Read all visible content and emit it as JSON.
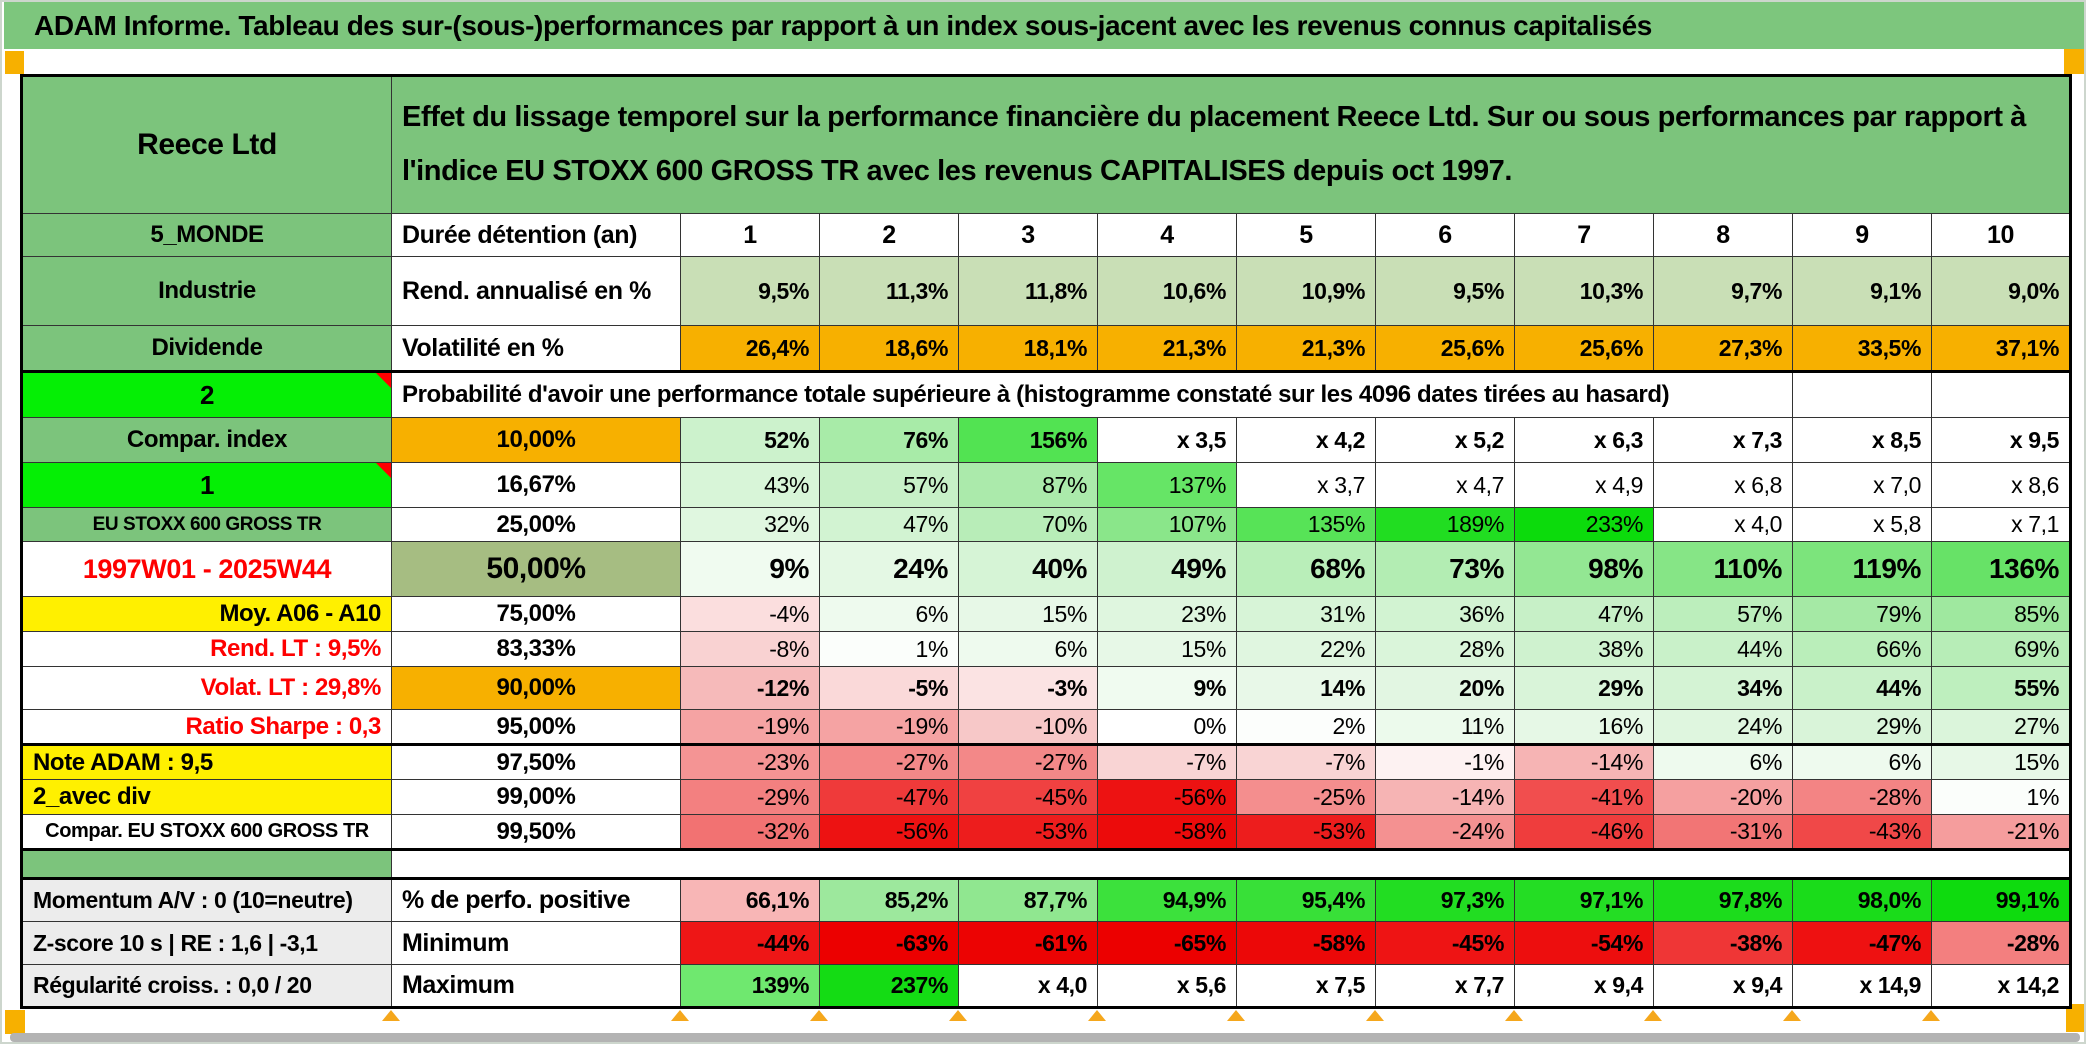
{
  "title": "ADAM Informe. Tableau des sur-(sous-)performances par rapport à un index sous-jacent avec les revenus connus capitalisés",
  "colors": {
    "title_bg": "#7dc67d",
    "green_cell": "#7cc47c",
    "bright_green": "#05ef05",
    "orange": "#f7b000",
    "olive": "#a6bd82",
    "yellow": "#fff000",
    "gray_label": "#ececec",
    "light_green_row": "#c9dfb6",
    "red_text": "#fe0000",
    "marker_orange": "#f5a71c",
    "scrollbar_gray": "#b3b3b3"
  },
  "table": {
    "rows": [
      {
        "id": "top",
        "left": {
          "t": "Reece Ltd",
          "bg": "#7cc47c",
          "fs": 30,
          "al": "c",
          "b": true
        },
        "metric": {
          "t": "Effet du lissage temporel sur la performance financière du placement Reece Ltd. Sur ou sous performances par rapport à l'indice EU STOXX 600 GROSS TR avec les revenus CAPITALISES depuis oct 1997.",
          "bg": "#7cc47c",
          "fs": 29,
          "al": "l",
          "b": true,
          "wrap": true
        },
        "span": 11,
        "trailing": 0
      },
      {
        "id": "duree",
        "left": {
          "t": "5_MONDE",
          "bg": "#7cc47c",
          "fs": 24,
          "al": "c",
          "b": true
        },
        "metric": {
          "t": "Durée détention (an)",
          "al": "l",
          "fs": 25,
          "b": true
        },
        "valsAl": "c",
        "valsBold": true,
        "valsFs": 25,
        "cells": [
          {
            "t": "1"
          },
          {
            "t": "2"
          },
          {
            "t": "3"
          },
          {
            "t": "4"
          },
          {
            "t": "5"
          },
          {
            "t": "6"
          },
          {
            "t": "7"
          },
          {
            "t": "8"
          },
          {
            "t": "9"
          },
          {
            "t": "10"
          }
        ]
      },
      {
        "id": "rend",
        "left": {
          "t": "Industrie",
          "bg": "#7cc47c",
          "fs": 24,
          "al": "c",
          "b": true
        },
        "metric": {
          "t": "Rend. annualisé en %",
          "al": "l",
          "fs": 25,
          "b": true
        },
        "valsBold": true,
        "cells": [
          {
            "t": "9,5%",
            "bg": "#c9dfb6"
          },
          {
            "t": "11,3%",
            "bg": "#c9dfb6"
          },
          {
            "t": "11,8%",
            "bg": "#c9dfb6"
          },
          {
            "t": "10,6%",
            "bg": "#c9dfb6"
          },
          {
            "t": "10,9%",
            "bg": "#c9dfb6"
          },
          {
            "t": "9,5%",
            "bg": "#c9dfb6"
          },
          {
            "t": "10,3%",
            "bg": "#c9dfb6"
          },
          {
            "t": "9,7%",
            "bg": "#c9dfb6"
          },
          {
            "t": "9,1%",
            "bg": "#c9dfb6"
          },
          {
            "t": "9,0%",
            "bg": "#c9dfb6"
          }
        ]
      },
      {
        "id": "vol",
        "cls": "thickb",
        "left": {
          "t": "Dividende",
          "bg": "#7cc47c",
          "fs": 24,
          "al": "c",
          "b": true
        },
        "metric": {
          "t": "Volatilité en %",
          "al": "l",
          "fs": 25,
          "b": true
        },
        "valsBold": true,
        "cells": [
          {
            "t": "26,4%",
            "bg": "#f7b000"
          },
          {
            "t": "18,6%",
            "bg": "#f7b000"
          },
          {
            "t": "18,1%",
            "bg": "#f7b000"
          },
          {
            "t": "21,3%",
            "bg": "#f7b000"
          },
          {
            "t": "21,3%",
            "bg": "#f7b000"
          },
          {
            "t": "25,6%",
            "bg": "#f7b000"
          },
          {
            "t": "25,6%",
            "bg": "#f7b000"
          },
          {
            "t": "27,3%",
            "bg": "#f7b000"
          },
          {
            "t": "33,5%",
            "bg": "#f7b000"
          },
          {
            "t": "37,1%",
            "bg": "#f7b000"
          }
        ]
      },
      {
        "id": "proba",
        "left": {
          "t": "2",
          "bg": "#05ef05",
          "fs": 26,
          "al": "c",
          "b": true,
          "corner": true
        },
        "metric": {
          "t": "Probabilité d'avoir une performance totale supérieure à (histogramme constaté sur les 4096 dates tirées au hasard)",
          "al": "l",
          "fs": 24,
          "b": true
        },
        "span": 9,
        "trailing": 2
      },
      {
        "id": "p10",
        "left": {
          "t": "Compar. index",
          "bg": "#7cc47c",
          "fs": 24,
          "al": "c",
          "b": true
        },
        "metric": {
          "t": "10,00%",
          "bg": "#f7b000",
          "b": true
        },
        "valsBold": true,
        "cells": [
          {
            "t": "52%",
            "bg": "#ccf2cc"
          },
          {
            "t": "76%",
            "bg": "#a8eba8"
          },
          {
            "t": "156%",
            "bg": "#52e352"
          },
          {
            "t": "x 3,5"
          },
          {
            "t": "x 4,2"
          },
          {
            "t": "x 5,2"
          },
          {
            "t": "x 6,3"
          },
          {
            "t": "x 7,3"
          },
          {
            "t": "x 8,5"
          },
          {
            "t": "x 9,5"
          }
        ]
      },
      {
        "id": "p16",
        "left": {
          "t": "1",
          "bg": "#05ef05",
          "fs": 26,
          "al": "c",
          "b": true,
          "corner": true
        },
        "metric": {
          "t": "16,67%",
          "b": true
        },
        "cells": [
          {
            "t": "43%",
            "bg": "#d8f5d8"
          },
          {
            "t": "57%",
            "bg": "#c7f0c7"
          },
          {
            "t": "87%",
            "bg": "#abeaab"
          },
          {
            "t": "137%",
            "bg": "#66e566"
          },
          {
            "t": "x 3,7"
          },
          {
            "t": "x 4,7"
          },
          {
            "t": "x 4,9"
          },
          {
            "t": "x 6,8"
          },
          {
            "t": "x 7,0"
          },
          {
            "t": "x 8,6"
          }
        ]
      },
      {
        "id": "p25",
        "left": {
          "t": "EU STOXX 600 GROSS TR",
          "bg": "#7cc47c",
          "fs": 19,
          "al": "c",
          "b": true
        },
        "metric": {
          "t": "25,00%",
          "b": true
        },
        "cells": [
          {
            "t": "32%",
            "bg": "#e0f7e0"
          },
          {
            "t": "47%",
            "bg": "#d2f3d2"
          },
          {
            "t": "70%",
            "bg": "#b8edb8"
          },
          {
            "t": "107%",
            "bg": "#8ae68a"
          },
          {
            "t": "135%",
            "bg": "#57e357"
          },
          {
            "t": "189%",
            "bg": "#21dd21"
          },
          {
            "t": "233%",
            "bg": "#0cdb0c"
          },
          {
            "t": "x 4,0"
          },
          {
            "t": "x 5,8"
          },
          {
            "t": "x 7,1"
          }
        ]
      },
      {
        "id": "p50",
        "left": {
          "t": "1997W01 - 2025W44",
          "fg": "#fe0000",
          "fs": 27,
          "al": "c",
          "b": true
        },
        "metric": {
          "t": "50,00%",
          "bg": "#a6bd82",
          "fs": 30,
          "b": true
        },
        "valsBold": true,
        "valsFs": 28,
        "cells": [
          {
            "t": "9%",
            "bg": "#f0fbf0"
          },
          {
            "t": "24%",
            "bg": "#e4f8e4"
          },
          {
            "t": "40%",
            "bg": "#d6f4d6"
          },
          {
            "t": "49%",
            "bg": "#cff2cf"
          },
          {
            "t": "68%",
            "bg": "#b9eeb9"
          },
          {
            "t": "73%",
            "bg": "#b3edb3"
          },
          {
            "t": "98%",
            "bg": "#93e793"
          },
          {
            "t": "110%",
            "bg": "#86e586"
          },
          {
            "t": "119%",
            "bg": "#7ce47c"
          },
          {
            "t": "136%",
            "bg": "#67e267"
          }
        ]
      },
      {
        "id": "p75",
        "left": {
          "t": "Moy. A06 - A10",
          "bg": "#fff000",
          "fs": 24,
          "al": "r",
          "b": true
        },
        "metric": {
          "t": "75,00%",
          "b": true
        },
        "cells": [
          {
            "t": "-4%",
            "bg": "#fbdede"
          },
          {
            "t": "6%",
            "bg": "#eefaee"
          },
          {
            "t": "15%",
            "bg": "#e7f8e7"
          },
          {
            "t": "23%",
            "bg": "#dff6df"
          },
          {
            "t": "31%",
            "bg": "#d7f4d7"
          },
          {
            "t": "36%",
            "bg": "#d2f3d2"
          },
          {
            "t": "47%",
            "bg": "#c7f0c7"
          },
          {
            "t": "57%",
            "bg": "#bceebc"
          },
          {
            "t": "79%",
            "bg": "#a5e9a5"
          },
          {
            "t": "85%",
            "bg": "#9fe89f"
          }
        ]
      },
      {
        "id": "p83",
        "left": {
          "t": "Rend. LT :   9,5%",
          "fg": "#fe0000",
          "fs": 24,
          "al": "r",
          "b": true
        },
        "metric": {
          "t": "83,33%",
          "b": true
        },
        "cells": [
          {
            "t": "-8%",
            "bg": "#f9d2d2"
          },
          {
            "t": "1%",
            "bg": "#fbfefb"
          },
          {
            "t": "6%",
            "bg": "#eefaee"
          },
          {
            "t": "15%",
            "bg": "#e7f8e7"
          },
          {
            "t": "22%",
            "bg": "#e0f6e0"
          },
          {
            "t": "28%",
            "bg": "#daf5da"
          },
          {
            "t": "38%",
            "bg": "#cff2cf"
          },
          {
            "t": "44%",
            "bg": "#c9f1c9"
          },
          {
            "t": "66%",
            "bg": "#baeeba"
          },
          {
            "t": "69%",
            "bg": "#b7edb7"
          }
        ]
      },
      {
        "id": "p90",
        "left": {
          "t": "Volat. LT :   29,8%",
          "fg": "#fe0000",
          "fs": 24,
          "al": "r",
          "b": true
        },
        "metric": {
          "t": "90,00%",
          "bg": "#f7b000",
          "b": true
        },
        "valsBold": true,
        "cells": [
          {
            "t": "-12%",
            "bg": "#f6baba"
          },
          {
            "t": "-5%",
            "bg": "#fad9d9"
          },
          {
            "t": "-3%",
            "bg": "#fbe3e3"
          },
          {
            "t": "9%",
            "bg": "#f0fbf0"
          },
          {
            "t": "14%",
            "bg": "#e8f8e8"
          },
          {
            "t": "20%",
            "bg": "#e2f6e2"
          },
          {
            "t": "29%",
            "bg": "#d9f4d9"
          },
          {
            "t": "34%",
            "bg": "#d4f3d4"
          },
          {
            "t": "44%",
            "bg": "#c9f1c9"
          },
          {
            "t": "55%",
            "bg": "#beefbe"
          }
        ]
      },
      {
        "id": "p95",
        "cls": "thickb",
        "left": {
          "t": "Ratio Sharpe :   0,3",
          "fg": "#fe0000",
          "fs": 24,
          "al": "r",
          "b": true
        },
        "metric": {
          "t": "95,00%",
          "b": true
        },
        "cells": [
          {
            "t": "-19%",
            "bg": "#f5a3a3"
          },
          {
            "t": "-19%",
            "bg": "#f5a3a3"
          },
          {
            "t": "-10%",
            "bg": "#f7c8c8"
          },
          {
            "t": "0%",
            "bg": "#ffffff"
          },
          {
            "t": "2%",
            "bg": "#fcfefc"
          },
          {
            "t": "11%",
            "bg": "#ecfaec"
          },
          {
            "t": "16%",
            "bg": "#e6f8e6"
          },
          {
            "t": "24%",
            "bg": "#dff6df"
          },
          {
            "t": "29%",
            "bg": "#d9f4d9"
          },
          {
            "t": "27%",
            "bg": "#dbf5db"
          }
        ]
      },
      {
        "id": "p975",
        "left": {
          "t": "Note ADAM : 9,5",
          "bg": "#fff000",
          "fs": 24,
          "al": "l",
          "b": true
        },
        "metric": {
          "t": "97,50%",
          "b": true
        },
        "cells": [
          {
            "t": "-23%",
            "bg": "#f49494"
          },
          {
            "t": "-27%",
            "bg": "#f38888"
          },
          {
            "t": "-27%",
            "bg": "#f38888"
          },
          {
            "t": "-7%",
            "bg": "#f9d4d4"
          },
          {
            "t": "-7%",
            "bg": "#f9d4d4"
          },
          {
            "t": "-1%",
            "bg": "#fdf2f2"
          },
          {
            "t": "-14%",
            "bg": "#f6b4b4"
          },
          {
            "t": "6%",
            "bg": "#eefaee"
          },
          {
            "t": "6%",
            "bg": "#eefaee"
          },
          {
            "t": "15%",
            "bg": "#e7f8e7"
          }
        ]
      },
      {
        "id": "p99",
        "left": {
          "t": "2_avec div",
          "bg": "#fff000",
          "fs": 24,
          "al": "l",
          "b": true
        },
        "metric": {
          "t": "99,00%",
          "b": true
        },
        "cells": [
          {
            "t": "-29%",
            "bg": "#f38080"
          },
          {
            "t": "-47%",
            "bg": "#ef3a3a"
          },
          {
            "t": "-45%",
            "bg": "#f04141"
          },
          {
            "t": "-56%",
            "bg": "#ed1212"
          },
          {
            "t": "-25%",
            "bg": "#f48e8e"
          },
          {
            "t": "-14%",
            "bg": "#f6b4b4"
          },
          {
            "t": "-41%",
            "bg": "#f14e4e"
          },
          {
            "t": "-20%",
            "bg": "#f5a0a0"
          },
          {
            "t": "-28%",
            "bg": "#f38484"
          },
          {
            "t": "1%",
            "bg": "#fbfefb"
          }
        ]
      },
      {
        "id": "p995",
        "cls": "thickb",
        "left": {
          "t": "Compar. EU STOXX 600 GROSS TR",
          "fs": 20,
          "al": "c",
          "b": true
        },
        "metric": {
          "t": "99,50%",
          "b": true
        },
        "cells": [
          {
            "t": "-32%",
            "bg": "#f27272"
          },
          {
            "t": "-56%",
            "bg": "#ed1212"
          },
          {
            "t": "-53%",
            "bg": "#ed1d1d"
          },
          {
            "t": "-58%",
            "bg": "#ec0b0b"
          },
          {
            "t": "-53%",
            "bg": "#ed1d1d"
          },
          {
            "t": "-24%",
            "bg": "#f49191"
          },
          {
            "t": "-46%",
            "bg": "#ef3d3d"
          },
          {
            "t": "-31%",
            "bg": "#f27575"
          },
          {
            "t": "-43%",
            "bg": "#f04848"
          },
          {
            "t": "-21%",
            "bg": "#f59d9d"
          }
        ]
      },
      {
        "id": "sep",
        "cls": "thickb",
        "left": {
          "t": "",
          "bg": "#7cc47c"
        },
        "metric": {
          "t": "",
          "nb": true
        },
        "span": 11,
        "trailing": 0
      },
      {
        "id": "perfo",
        "left": {
          "t": "Momentum A/V : 0 (10=neutre)",
          "bg": "#ececec",
          "fs": 23,
          "al": "l",
          "b": true
        },
        "metric": {
          "t": "% de perfo. positive",
          "al": "l",
          "fs": 25,
          "b": true
        },
        "valsBold": true,
        "cells": [
          {
            "t": "66,1%",
            "bg": "#f8b6b6"
          },
          {
            "t": "85,2%",
            "bg": "#9de89d"
          },
          {
            "t": "87,7%",
            "bg": "#90e790"
          },
          {
            "t": "94,9%",
            "bg": "#3ce13c"
          },
          {
            "t": "95,4%",
            "bg": "#38e038"
          },
          {
            "t": "97,3%",
            "bg": "#22dd22"
          },
          {
            "t": "97,1%",
            "bg": "#24dd24"
          },
          {
            "t": "97,8%",
            "bg": "#1cdc1c"
          },
          {
            "t": "98,0%",
            "bg": "#1adc1a"
          },
          {
            "t": "99,1%",
            "bg": "#0edb0e"
          }
        ]
      },
      {
        "id": "min",
        "left": {
          "t": "Z-score 10 s | RE : 1,6 | -3,1",
          "bg": "#ececec",
          "fs": 23,
          "al": "l",
          "b": true
        },
        "metric": {
          "t": "Minimum",
          "al": "l",
          "fs": 25,
          "b": true
        },
        "valsBold": true,
        "cells": [
          {
            "t": "-44%",
            "bg": "#ee1616"
          },
          {
            "t": "-63%",
            "bg": "#ec0000"
          },
          {
            "t": "-61%",
            "bg": "#ec0303"
          },
          {
            "t": "-65%",
            "bg": "#ec0000"
          },
          {
            "t": "-58%",
            "bg": "#ec0808"
          },
          {
            "t": "-45%",
            "bg": "#ee1414"
          },
          {
            "t": "-54%",
            "bg": "#ed0e0e"
          },
          {
            "t": "-38%",
            "bg": "#ef3636"
          },
          {
            "t": "-47%",
            "bg": "#ee1111"
          },
          {
            "t": "-28%",
            "bg": "#f37f7f"
          }
        ]
      },
      {
        "id": "max",
        "left": {
          "t": "Régularité croiss. : 0,0 / 20",
          "bg": "#ececec",
          "fs": 23,
          "al": "l",
          "b": true
        },
        "metric": {
          "t": "Maximum",
          "al": "l",
          "fs": 25,
          "b": true
        },
        "valsBold": true,
        "cells": [
          {
            "t": "139%",
            "bg": "#6fe86f"
          },
          {
            "t": "237%",
            "bg": "#14dc14"
          },
          {
            "t": "x 4,0"
          },
          {
            "t": "x 5,6"
          },
          {
            "t": "x 7,5"
          },
          {
            "t": "x 7,7"
          },
          {
            "t": "x 9,4"
          },
          {
            "t": "x 9,4"
          },
          {
            "t": "x 14,9"
          },
          {
            "t": "x 14,2"
          }
        ]
      }
    ]
  }
}
